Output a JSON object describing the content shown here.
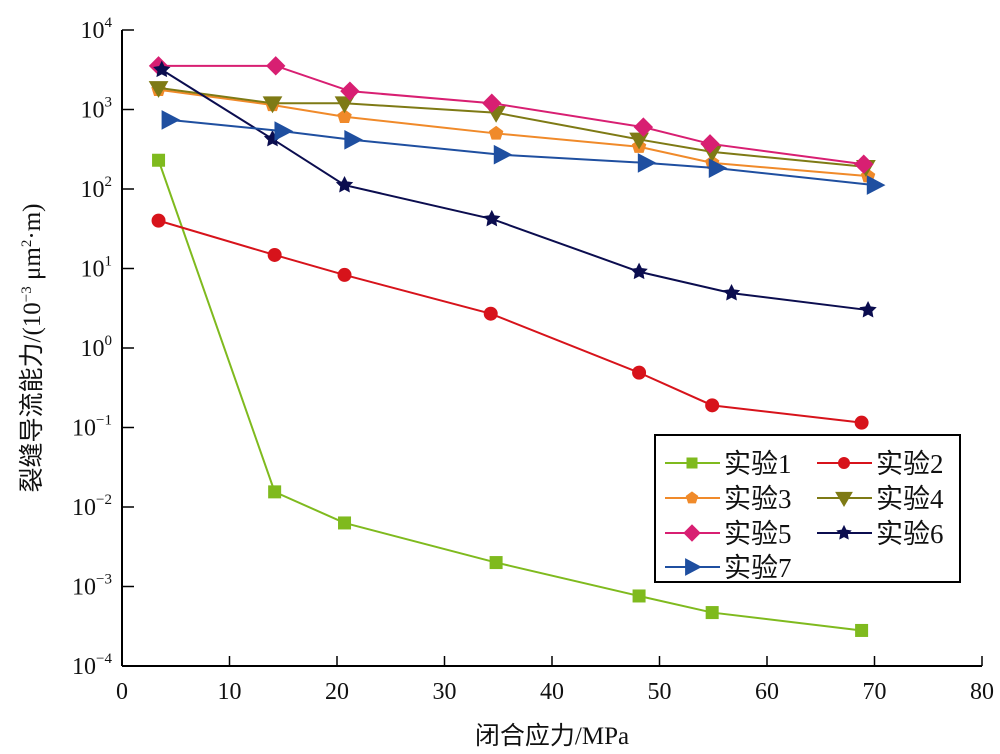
{
  "chart_data": {
    "type": "line",
    "title": "",
    "xlabel": "闭合应力/MPa",
    "ylabel": "裂缝导流能力/(10⁻³ μm²·m)",
    "ylabel_parts": {
      "prefix": "裂缝导流能力/(10",
      "exp": "−3",
      "mid": " μm",
      "exp2": "2",
      "suffix": "·m)"
    },
    "xlim": [
      0,
      80
    ],
    "ylim": [
      0.0001,
      10000
    ],
    "yscale": "log",
    "grid": false,
    "legend_position": "bottom-right",
    "x_ticks": [
      "0",
      "10",
      "20",
      "30",
      "40",
      "50",
      "60",
      "70",
      "80"
    ],
    "x_tick_values": [
      0,
      10,
      20,
      30,
      40,
      50,
      60,
      70,
      80
    ],
    "y_ticks": [
      {
        "base": "10",
        "exp": "4",
        "value": 10000
      },
      {
        "base": "10",
        "exp": "3",
        "value": 1000
      },
      {
        "base": "10",
        "exp": "2",
        "value": 100
      },
      {
        "base": "10",
        "exp": "1",
        "value": 10
      },
      {
        "base": "10",
        "exp": "0",
        "value": 1
      },
      {
        "base": "10",
        "exp": "−1",
        "value": 0.1
      },
      {
        "base": "10",
        "exp": "−2",
        "value": 0.01
      },
      {
        "base": "10",
        "exp": "−3",
        "value": 0.001
      },
      {
        "base": "10",
        "exp": "−4",
        "value": 0.0001
      }
    ],
    "series": [
      {
        "name": "实验1",
        "color": "#7fba1e",
        "marker": "square",
        "x": [
          3.4,
          14.2,
          20.7,
          34.8,
          48.1,
          54.9,
          68.8
        ],
        "y": [
          230,
          0.0155,
          0.0063,
          0.002,
          0.00076,
          0.00047,
          0.00028
        ]
      },
      {
        "name": "实验2",
        "color": "#d7131b",
        "marker": "circle",
        "x": [
          3.4,
          14.2,
          20.7,
          34.3,
          48.1,
          54.9,
          68.8
        ],
        "y": [
          40,
          14.8,
          8.3,
          2.7,
          0.49,
          0.19,
          0.115
        ]
      },
      {
        "name": "实验3",
        "color": "#f08a2a",
        "marker": "pentagon",
        "x": [
          3.4,
          14.0,
          20.7,
          34.8,
          48.1,
          54.9,
          69.4
        ],
        "y": [
          1770,
          1140,
          810,
          500,
          340,
          213,
          145
        ]
      },
      {
        "name": "实验4",
        "color": "#7e7a15",
        "marker": "triangle-down",
        "x": [
          3.4,
          14.0,
          20.7,
          34.8,
          48.1,
          54.9,
          69.2
        ],
        "y": [
          1870,
          1200,
          1200,
          910,
          420,
          293,
          190
        ]
      },
      {
        "name": "实验5",
        "color": "#d81f72",
        "marker": "diamond",
        "x": [
          3.4,
          14.3,
          21.2,
          34.4,
          48.5,
          54.7,
          69.0
        ],
        "y": [
          3540,
          3540,
          1700,
          1200,
          600,
          370,
          205
        ]
      },
      {
        "name": "实验6",
        "color": "#0b0d4f",
        "marker": "star",
        "x": [
          3.7,
          14.0,
          20.7,
          34.4,
          48.1,
          56.7,
          69.4
        ],
        "y": [
          3160,
          425,
          112,
          42,
          9.1,
          4.9,
          3.0
        ]
      },
      {
        "name": "实验7",
        "color": "#1f4fa0",
        "marker": "triangle-right",
        "x": [
          4.4,
          14.9,
          21.4,
          35.3,
          48.7,
          55.3,
          70.0
        ],
        "y": [
          740,
          535,
          416,
          270,
          213,
          183,
          112
        ]
      }
    ]
  }
}
